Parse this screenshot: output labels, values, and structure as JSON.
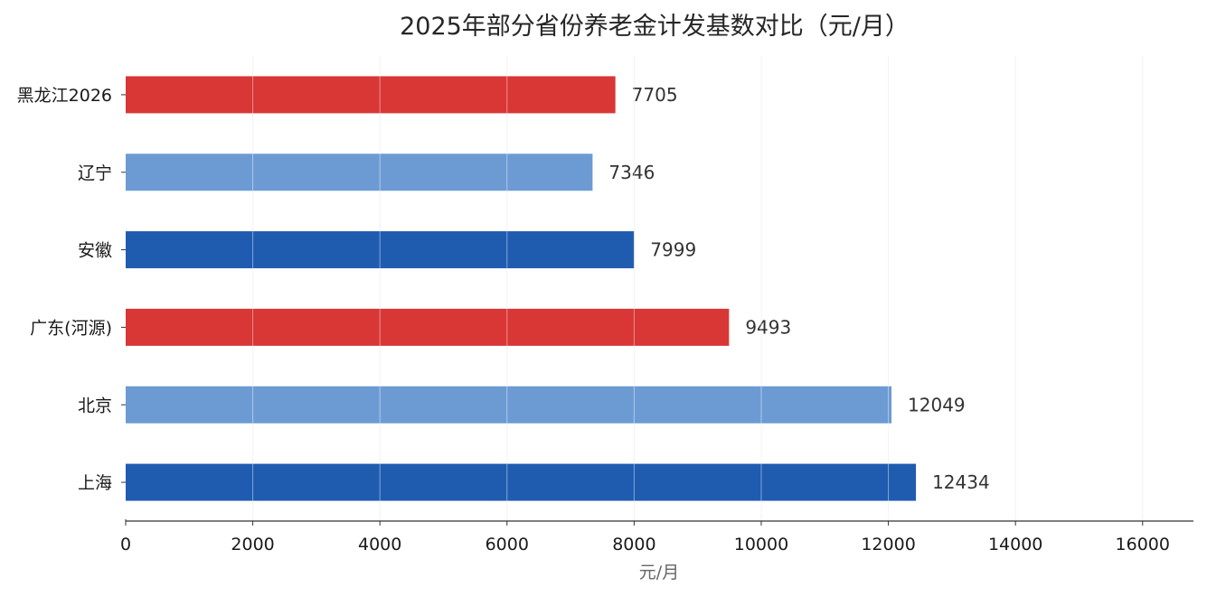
{
  "chart_data": {
    "type": "bar",
    "orientation": "horizontal",
    "title": "2025年部分省份养老金计发基数对比（元/月）",
    "xlabel": "元/月",
    "ylabel": "",
    "categories": [
      "黑龙江2026",
      "辽宁",
      "安徽",
      "广东(河源)",
      "北京",
      "上海"
    ],
    "values": [
      7705,
      7346,
      7999,
      9493,
      12049,
      12434
    ],
    "value_labels": [
      "7705",
      "7346",
      "7999",
      "9493",
      "12049",
      "12434"
    ],
    "bar_colors": [
      "#d93636",
      "#6c9bd4",
      "#1f5cb0",
      "#d93636",
      "#6c9bd4",
      "#1f5cb0"
    ],
    "xlim": [
      0,
      16800
    ],
    "xticks": [
      0,
      2000,
      4000,
      6000,
      8000,
      10000,
      12000,
      14000,
      16000
    ],
    "xtick_labels": [
      "0",
      "2000",
      "4000",
      "6000",
      "8000",
      "10000",
      "12000",
      "14000",
      "16000"
    ],
    "grid": "vertical",
    "legend": "none"
  }
}
